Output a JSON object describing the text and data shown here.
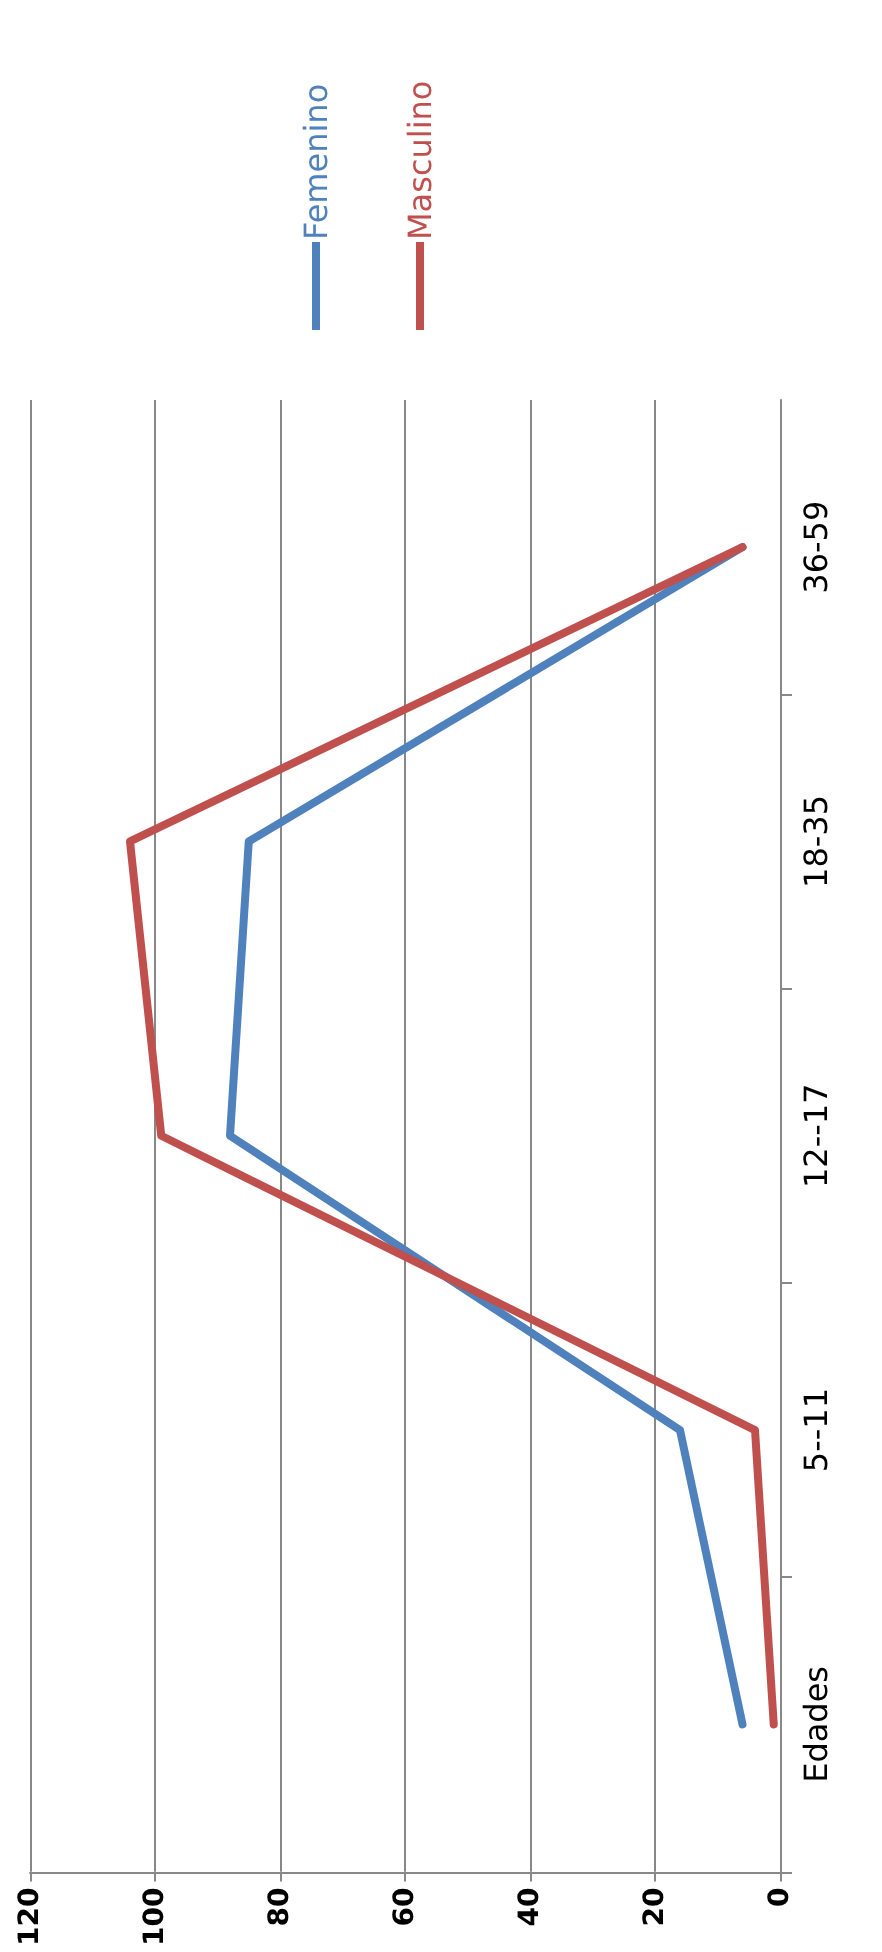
{
  "chart_data": {
    "type": "line",
    "orientation": "horizontal",
    "categories": [
      "36-59",
      "18-35",
      "12--17",
      "5--11",
      "Edades"
    ],
    "series": [
      {
        "name": "Femenino",
        "color": "#4f81bd",
        "values": [
          6,
          85,
          88,
          16,
          6
        ]
      },
      {
        "name": "Masculino",
        "color": "#c0504d",
        "values": [
          6,
          104,
          99,
          4,
          1
        ]
      }
    ],
    "xlim": [
      120,
      0
    ],
    "xticks": [
      120,
      100,
      80,
      60,
      40,
      20,
      0
    ],
    "grid": "x",
    "legend": "top",
    "marker": "none",
    "line_style": "solid"
  }
}
